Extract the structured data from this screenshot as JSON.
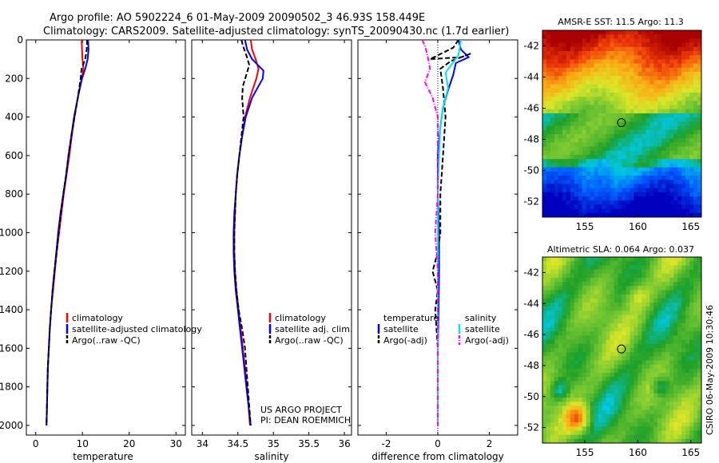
{
  "header": {
    "title_line1": "Argo profile: AO 5902224_6 01-May-2009 20090502_3 46.93S 158.449E",
    "title_line2": "Climatology: CARS2009. Satellite-adjusted climatology: synTS_20090430.nc (1.7d earlier)"
  },
  "colors": {
    "climatology": "#ff0000",
    "satellite": "#0000ff",
    "argo": "#000000",
    "sal_satellite": "#00e5e5",
    "sal_argo": "#ff00ff"
  },
  "chart_data": [
    {
      "type": "line",
      "id": "temperature",
      "xlabel": "temperature",
      "xlim": [
        -2,
        32
      ],
      "ylim": [
        2050,
        0
      ],
      "xticks": [
        0,
        10,
        20,
        30
      ],
      "yticks": [
        0,
        200,
        400,
        600,
        800,
        1000,
        1200,
        1400,
        1600,
        1800,
        2000
      ],
      "legend": [
        "climatology",
        "satellite-adjusted climatology",
        "Argo(..raw -QC)"
      ],
      "series": [
        {
          "name": "climatology",
          "style": "solid",
          "color": "#ff0000",
          "points": [
            [
              9.8,
              0
            ],
            [
              9.9,
              50
            ],
            [
              10.0,
              100
            ],
            [
              10.2,
              150
            ],
            [
              9.8,
              200
            ],
            [
              9.0,
              300
            ],
            [
              8.3,
              400
            ],
            [
              7.7,
              500
            ],
            [
              7.2,
              600
            ],
            [
              6.6,
              700
            ],
            [
              6.0,
              800
            ],
            [
              5.5,
              900
            ],
            [
              5.0,
              1000
            ],
            [
              4.5,
              1100
            ],
            [
              4.1,
              1200
            ],
            [
              3.7,
              1300
            ],
            [
              3.3,
              1400
            ],
            [
              3.0,
              1500
            ],
            [
              2.8,
              1600
            ],
            [
              2.6,
              1700
            ],
            [
              2.5,
              1800
            ],
            [
              2.4,
              1900
            ],
            [
              2.3,
              2000
            ]
          ]
        },
        {
          "name": "satellite-adjusted climatology",
          "style": "solid",
          "color": "#0000ff",
          "points": [
            [
              11.2,
              0
            ],
            [
              11.3,
              50
            ],
            [
              11.1,
              100
            ],
            [
              10.6,
              150
            ],
            [
              9.9,
              200
            ],
            [
              9.0,
              300
            ],
            [
              8.2,
              400
            ],
            [
              7.6,
              500
            ],
            [
              7.0,
              600
            ],
            [
              6.5,
              700
            ],
            [
              5.9,
              800
            ],
            [
              5.3,
              900
            ],
            [
              4.8,
              1000
            ],
            [
              4.4,
              1100
            ],
            [
              4.0,
              1200
            ],
            [
              3.6,
              1300
            ],
            [
              3.3,
              1400
            ],
            [
              3.0,
              1500
            ],
            [
              2.8,
              1600
            ],
            [
              2.6,
              1700
            ],
            [
              2.5,
              1800
            ],
            [
              2.4,
              1900
            ],
            [
              2.3,
              2000
            ]
          ]
        },
        {
          "name": "Argo(..raw -QC)",
          "style": "dash",
          "color": "#000000",
          "points": [
            [
              11.0,
              0
            ],
            [
              10.9,
              50
            ],
            [
              10.6,
              100
            ],
            [
              9.8,
              150
            ],
            [
              9.6,
              200
            ],
            [
              9.0,
              300
            ],
            [
              8.3,
              400
            ],
            [
              7.6,
              500
            ],
            [
              7.0,
              600
            ],
            [
              6.5,
              700
            ],
            [
              5.9,
              800
            ],
            [
              5.4,
              900
            ],
            [
              4.9,
              1000
            ],
            [
              4.5,
              1100
            ],
            [
              4.0,
              1200
            ],
            [
              3.6,
              1300
            ],
            [
              3.3,
              1400
            ],
            [
              3.0,
              1500
            ],
            [
              2.8,
              1600
            ],
            [
              2.6,
              1700
            ],
            [
              2.5,
              1800
            ],
            [
              2.4,
              1900
            ],
            [
              2.3,
              2000
            ]
          ]
        }
      ]
    },
    {
      "type": "line",
      "id": "salinity",
      "xlabel": "salinity",
      "xlim": [
        33.85,
        36.1
      ],
      "ylim": [
        2050,
        0
      ],
      "xticks": [
        34,
        34.5,
        35,
        35.5,
        36
      ],
      "legend": [
        "climatology",
        "satellite adj. clim.",
        "Argo(..raw -QC)"
      ],
      "series": [
        {
          "name": "climatology",
          "style": "solid",
          "color": "#ff0000",
          "points": [
            [
              34.68,
              0
            ],
            [
              34.7,
              50
            ],
            [
              34.75,
              100
            ],
            [
              34.79,
              150
            ],
            [
              34.76,
              200
            ],
            [
              34.67,
              300
            ],
            [
              34.6,
              400
            ],
            [
              34.56,
              500
            ],
            [
              34.52,
              600
            ],
            [
              34.49,
              700
            ],
            [
              34.47,
              800
            ],
            [
              34.46,
              900
            ],
            [
              34.45,
              1000
            ],
            [
              34.45,
              1100
            ],
            [
              34.46,
              1200
            ],
            [
              34.48,
              1300
            ],
            [
              34.51,
              1400
            ],
            [
              34.54,
              1500
            ],
            [
              34.57,
              1600
            ],
            [
              34.6,
              1700
            ],
            [
              34.63,
              1800
            ],
            [
              34.65,
              1900
            ],
            [
              34.67,
              2000
            ]
          ]
        },
        {
          "name": "satellite adj. clim.",
          "style": "solid",
          "color": "#0000ff",
          "points": [
            [
              34.6,
              0
            ],
            [
              34.63,
              50
            ],
            [
              34.7,
              100
            ],
            [
              34.86,
              160
            ],
            [
              34.85,
              200
            ],
            [
              34.7,
              300
            ],
            [
              34.61,
              400
            ],
            [
              34.56,
              500
            ],
            [
              34.52,
              600
            ],
            [
              34.49,
              700
            ],
            [
              34.47,
              800
            ],
            [
              34.45,
              900
            ],
            [
              34.44,
              1000
            ],
            [
              34.44,
              1100
            ],
            [
              34.45,
              1200
            ],
            [
              34.47,
              1300
            ],
            [
              34.5,
              1400
            ],
            [
              34.53,
              1500
            ],
            [
              34.56,
              1600
            ],
            [
              34.59,
              1700
            ],
            [
              34.62,
              1800
            ],
            [
              34.65,
              1900
            ],
            [
              34.68,
              2000
            ]
          ]
        },
        {
          "name": "Argo(..raw -QC)",
          "style": "dash",
          "color": "#000000",
          "points": [
            [
              34.55,
              0
            ],
            [
              34.58,
              40
            ],
            [
              34.62,
              80
            ],
            [
              34.66,
              130
            ],
            [
              34.62,
              180
            ],
            [
              34.57,
              240
            ],
            [
              34.56,
              300
            ],
            [
              34.58,
              400
            ],
            [
              34.55,
              500
            ],
            [
              34.52,
              600
            ],
            [
              34.49,
              700
            ],
            [
              34.47,
              800
            ],
            [
              34.46,
              900
            ],
            [
              34.45,
              1000
            ],
            [
              34.45,
              1100
            ],
            [
              34.46,
              1200
            ],
            [
              34.48,
              1300
            ],
            [
              34.51,
              1400
            ],
            [
              34.56,
              1500
            ],
            [
              34.6,
              1600
            ],
            [
              34.62,
              1700
            ],
            [
              34.64,
              1800
            ],
            [
              34.66,
              1900
            ],
            [
              34.68,
              2000
            ]
          ]
        }
      ]
    },
    {
      "type": "line",
      "id": "difference",
      "xlabel": "difference from climatology",
      "xlim": [
        -3.1,
        3.1
      ],
      "ylim": [
        2050,
        0
      ],
      "xticks": [
        -2,
        0,
        2
      ],
      "legend_left_title": "temperature",
      "legend_right_title": "salinity",
      "legend_left": [
        "satellite",
        "Argo(-adj)"
      ],
      "legend_right": [
        "satellite",
        "Argo(-adj)"
      ],
      "series": [
        {
          "name": "temperature satellite",
          "style": "solid",
          "color": "#0000ff",
          "points": [
            [
              0.8,
              0
            ],
            [
              0.9,
              50
            ],
            [
              1.2,
              90
            ],
            [
              0.7,
              120
            ],
            [
              0.6,
              180
            ],
            [
              0.4,
              260
            ],
            [
              0.2,
              350
            ],
            [
              0.1,
              450
            ],
            [
              0.0,
              600
            ],
            [
              0.0,
              800
            ],
            [
              0.05,
              1000
            ],
            [
              0.05,
              1200
            ],
            [
              0.03,
              1400
            ],
            [
              0.0,
              1600
            ],
            [
              0.0,
              1800
            ],
            [
              0.0,
              2000
            ]
          ]
        },
        {
          "name": "temperature Argo(-adj)",
          "style": "dash",
          "color": "#000000",
          "points": [
            [
              0.8,
              0
            ],
            [
              0.6,
              40
            ],
            [
              0.0,
              80
            ],
            [
              -0.3,
              100
            ],
            [
              0.9,
              90
            ],
            [
              1.3,
              70
            ],
            [
              0.5,
              110
            ],
            [
              0.1,
              150
            ],
            [
              0.2,
              250
            ],
            [
              0.3,
              400
            ],
            [
              0.2,
              600
            ],
            [
              0.1,
              800
            ],
            [
              0.1,
              1000
            ],
            [
              0.0,
              1100
            ],
            [
              -0.2,
              1200
            ],
            [
              0.0,
              1300
            ],
            [
              -0.1,
              1400
            ],
            [
              0.0,
              1600
            ],
            [
              0.0,
              1800
            ],
            [
              0.0,
              2000
            ]
          ]
        },
        {
          "name": "salinity satellite",
          "style": "solid",
          "color": "#00e5e5",
          "points": [
            [
              0.9,
              0
            ],
            [
              0.8,
              80
            ],
            [
              0.3,
              170
            ],
            [
              0.4,
              250
            ],
            [
              0.2,
              350
            ],
            [
              0.1,
              450
            ],
            [
              0.05,
              600
            ],
            [
              0.0,
              800
            ],
            [
              0.0,
              1000
            ],
            [
              0.0,
              1200
            ],
            [
              0.0,
              1400
            ],
            [
              0.0,
              1600
            ],
            [
              0.0,
              1800
            ],
            [
              0.0,
              2000
            ]
          ]
        },
        {
          "name": "salinity Argo(-adj)",
          "style": "dashdot",
          "color": "#ff00ff",
          "points": [
            [
              -0.6,
              0
            ],
            [
              -0.5,
              30
            ],
            [
              -0.4,
              80
            ],
            [
              -0.3,
              150
            ],
            [
              -0.5,
              220
            ],
            [
              -0.2,
              300
            ],
            [
              0.0,
              400
            ],
            [
              0.0,
              600
            ],
            [
              0.0,
              800
            ],
            [
              -0.1,
              1000
            ],
            [
              -0.05,
              1100
            ],
            [
              0.0,
              1200
            ],
            [
              0.0,
              1400
            ],
            [
              0.0,
              1600
            ],
            [
              0.0,
              1800
            ],
            [
              0.0,
              2000
            ]
          ]
        }
      ]
    },
    {
      "type": "heatmap",
      "id": "sst-map",
      "title": "AMSR-E SST: 11.5 Argo: 11.3",
      "xlim": [
        151,
        166
      ],
      "ylim": [
        -53,
        -41
      ],
      "xticks": [
        155,
        160,
        165
      ],
      "yticks": [
        -42,
        -44,
        -46,
        -48,
        -50,
        -52
      ],
      "marker": {
        "lon": 158.449,
        "lat": -46.93
      }
    },
    {
      "type": "heatmap",
      "id": "sla-map",
      "title": "Altimetric SLA: 0.064 Argo: 0.037",
      "xlim": [
        151,
        166
      ],
      "ylim": [
        -53,
        -41
      ],
      "xticks": [
        155,
        160,
        165
      ],
      "yticks": [
        -42,
        -44,
        -46,
        -48,
        -50,
        -52
      ],
      "marker": {
        "lon": 158.449,
        "lat": -46.93
      }
    }
  ],
  "credits": {
    "project": "US ARGO PROJECT",
    "pi": "PI: DEAN ROEMMICH",
    "stamp": "CSIRO 06-May-2009 10:30:46"
  }
}
